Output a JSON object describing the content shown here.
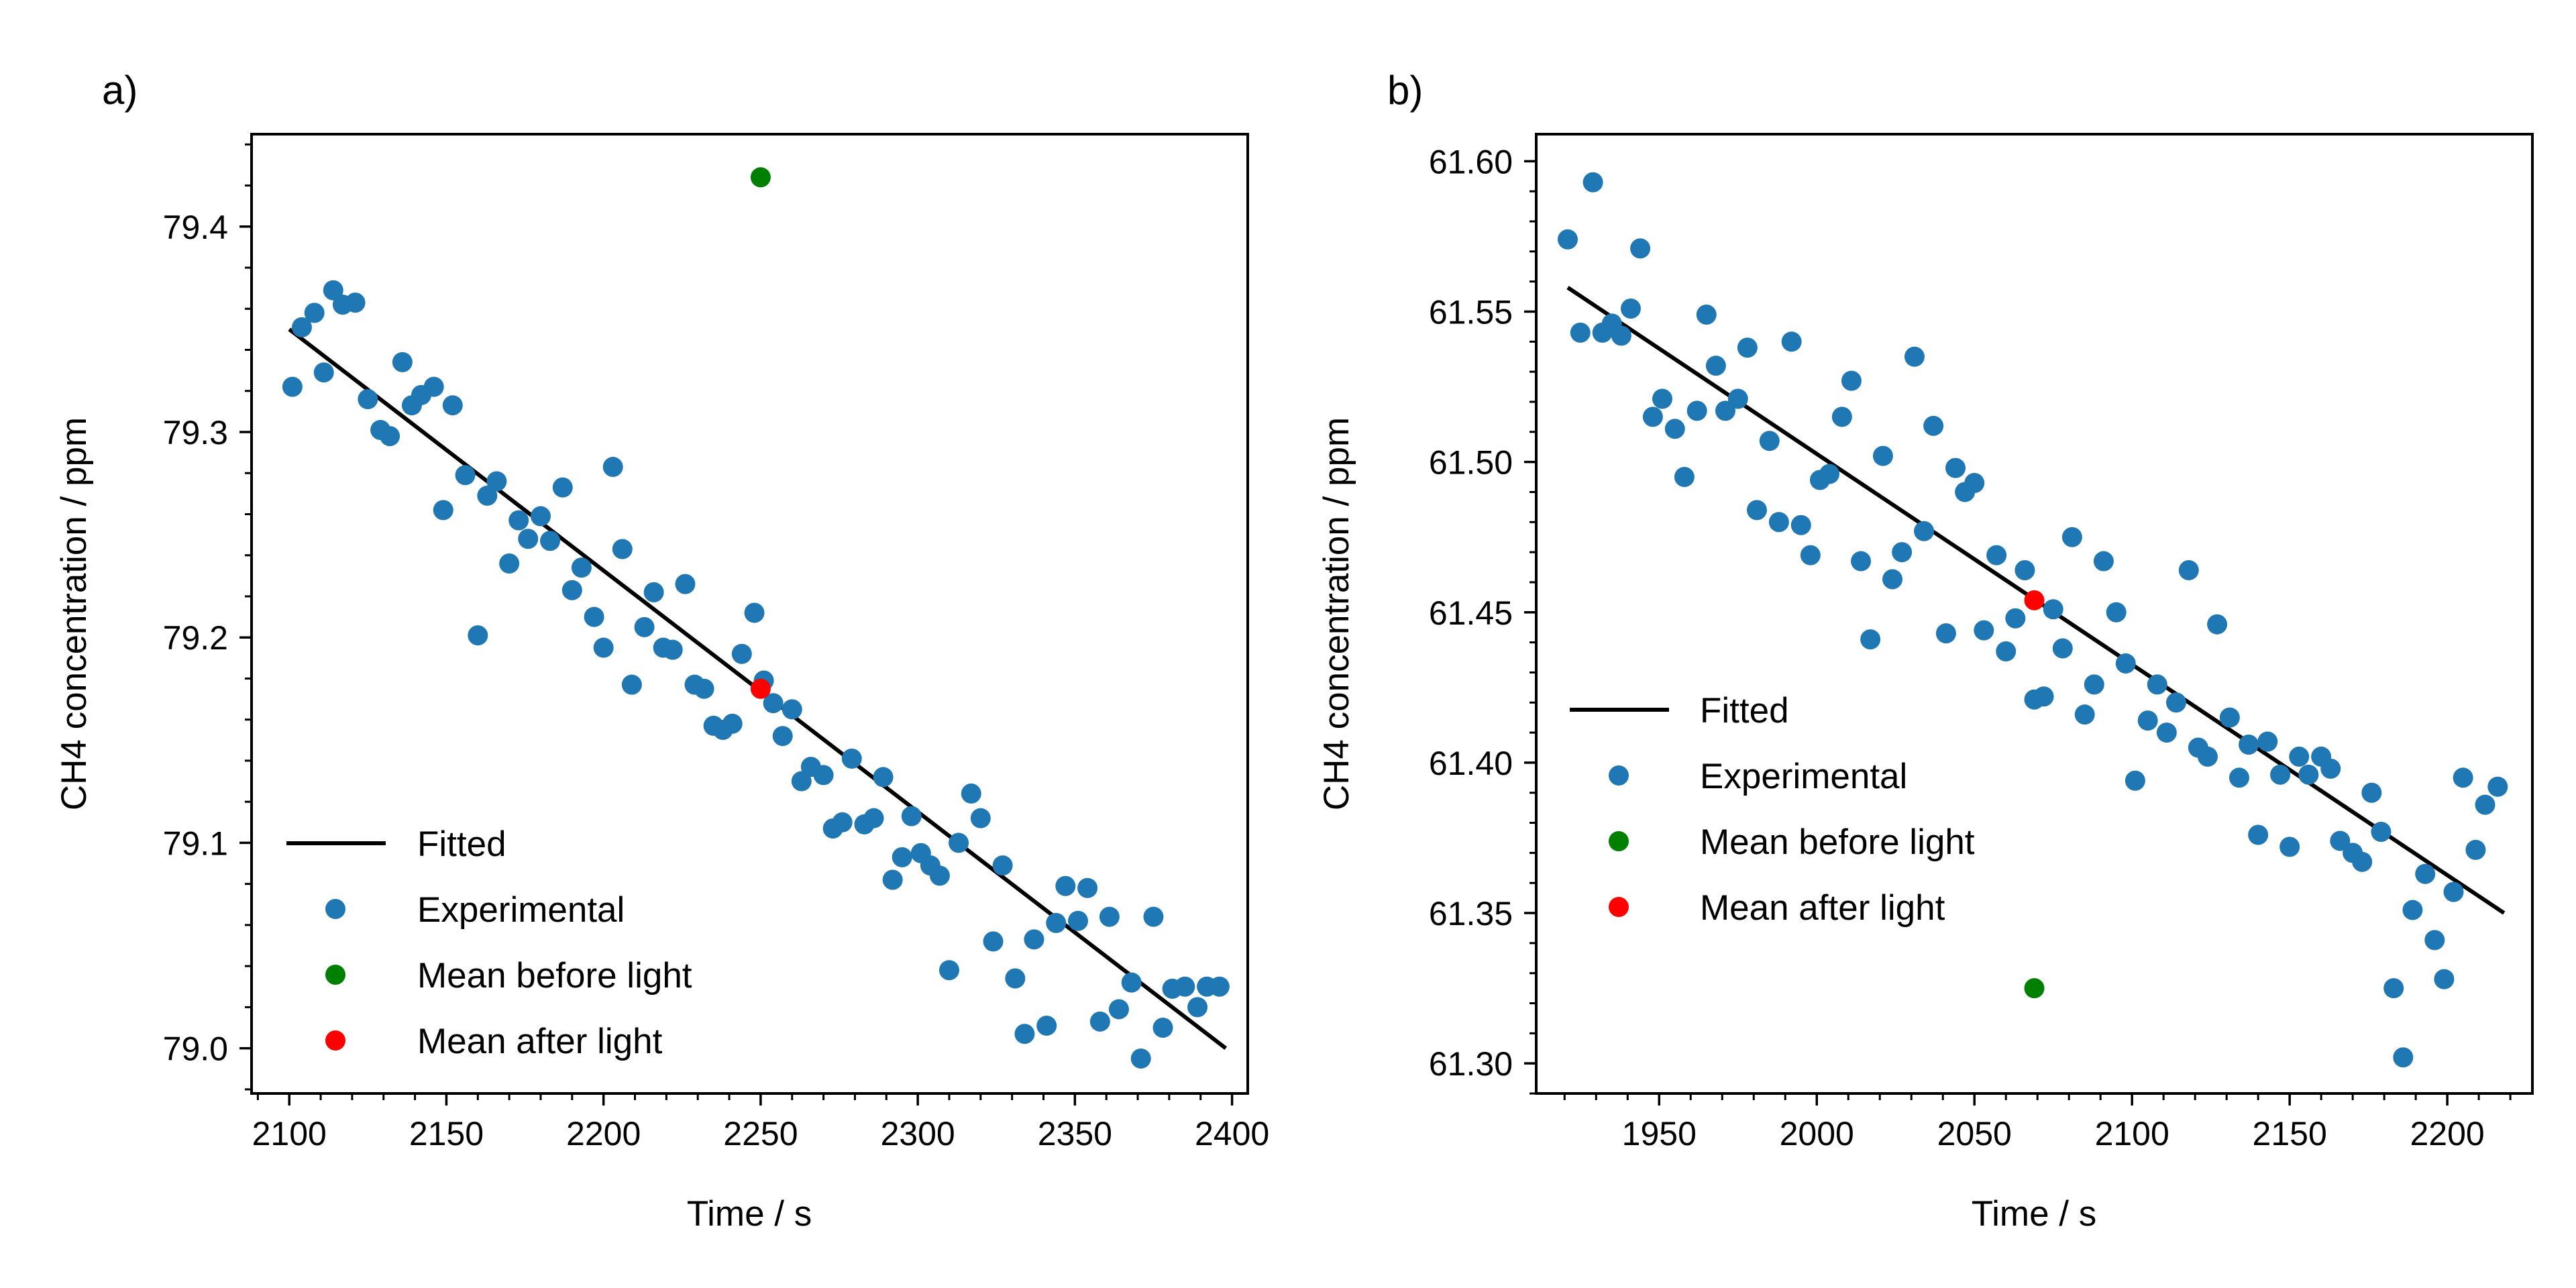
{
  "chart_data": [
    {
      "type": "scatter",
      "panel_label": "a)",
      "xlabel": "Time / s",
      "ylabel": "CH4 concentration / ppm",
      "xlim": [
        2088,
        2405
      ],
      "ylim": [
        78.978,
        79.445
      ],
      "xticks": [
        2100,
        2150,
        2200,
        2250,
        2300,
        2350,
        2400
      ],
      "yticks": [
        79.0,
        79.1,
        79.2,
        79.3,
        79.4
      ],
      "xminor_step": 10,
      "yminor_step": 0.02,
      "ytick_decimals": 1,
      "legend_position": "lower-left",
      "legend": [
        {
          "label": "Fitted",
          "kind": "line",
          "color": "#000000"
        },
        {
          "label": "Experimental",
          "kind": "marker",
          "color": "#1f77b4"
        },
        {
          "label": "Mean before light",
          "kind": "marker",
          "color": "#008000"
        },
        {
          "label": "Mean after light",
          "kind": "marker",
          "color": "#ff0000"
        }
      ],
      "series": [
        {
          "name": "Fitted",
          "kind": "line",
          "color": "#000000",
          "x": [
            2100,
            2398
          ],
          "y": [
            79.35,
            79.0
          ]
        },
        {
          "name": "Experimental",
          "kind": "scatter",
          "color": "#1f77b4",
          "x": [
            2101,
            2104,
            2108,
            2111,
            2114,
            2117,
            2121,
            2125,
            2129,
            2132,
            2136,
            2139,
            2142,
            2146,
            2149,
            2152,
            2156,
            2160,
            2163,
            2166,
            2170,
            2173,
            2176,
            2180,
            2183,
            2187,
            2190,
            2193,
            2197,
            2200,
            2203,
            2206,
            2209,
            2213,
            2216,
            2219,
            2222,
            2226,
            2229,
            2232,
            2235,
            2238,
            2241,
            2244,
            2248,
            2251,
            2254,
            2257,
            2260,
            2263,
            2266,
            2270,
            2273,
            2276,
            2279,
            2283,
            2286,
            2289,
            2292,
            2295,
            2298,
            2301,
            2304,
            2307,
            2310,
            2313,
            2317,
            2320,
            2324,
            2327,
            2331,
            2334,
            2337,
            2341,
            2344,
            2347,
            2351,
            2354,
            2358,
            2361,
            2364,
            2368,
            2371,
            2375,
            2378,
            2381,
            2385,
            2389,
            2392,
            2396
          ],
          "y": [
            79.322,
            79.351,
            79.358,
            79.329,
            79.369,
            79.362,
            79.363,
            79.316,
            79.301,
            79.298,
            79.334,
            79.313,
            79.318,
            79.322,
            79.262,
            79.313,
            79.279,
            79.201,
            79.269,
            79.276,
            79.236,
            79.257,
            79.248,
            79.259,
            79.247,
            79.273,
            79.223,
            79.234,
            79.21,
            79.195,
            79.283,
            79.243,
            79.177,
            79.205,
            79.222,
            79.195,
            79.194,
            79.226,
            79.177,
            79.175,
            79.157,
            79.155,
            79.158,
            79.192,
            79.212,
            79.179,
            79.168,
            79.152,
            79.165,
            79.13,
            79.137,
            79.133,
            79.107,
            79.11,
            79.141,
            79.109,
            79.112,
            79.132,
            79.082,
            79.093,
            79.113,
            79.095,
            79.089,
            79.084,
            79.038,
            79.1,
            79.124,
            79.112,
            79.052,
            79.089,
            79.034,
            79.007,
            79.053,
            79.011,
            79.061,
            79.079,
            79.062,
            79.078,
            79.013,
            79.064,
            79.019,
            79.032,
            78.995,
            79.064,
            79.01,
            79.029,
            79.03,
            79.02,
            79.03,
            79.03
          ]
        },
        {
          "name": "Mean before light",
          "kind": "scatter",
          "color": "#008000",
          "x": [
            2250
          ],
          "y": [
            79.424
          ]
        },
        {
          "name": "Mean after light",
          "kind": "scatter",
          "color": "#ff0000",
          "x": [
            2250
          ],
          "y": [
            79.175
          ]
        }
      ]
    },
    {
      "type": "scatter",
      "panel_label": "b)",
      "xlabel": "Time / s",
      "ylabel": "CH4 concentration / ppm",
      "xlim": [
        1911,
        2227
      ],
      "ylim": [
        61.29,
        61.609
      ],
      "xticks": [
        1950,
        2000,
        2050,
        2100,
        2150,
        2200
      ],
      "yticks": [
        61.3,
        61.35,
        61.4,
        61.45,
        61.5,
        61.55,
        61.6
      ],
      "xminor_step": 10,
      "yminor_step": 0.01,
      "ytick_decimals": 2,
      "legend_position": "center-left",
      "legend": [
        {
          "label": "Fitted",
          "kind": "line",
          "color": "#000000"
        },
        {
          "label": "Experimental",
          "kind": "marker",
          "color": "#1f77b4"
        },
        {
          "label": "Mean before light",
          "kind": "marker",
          "color": "#008000"
        },
        {
          "label": "Mean after light",
          "kind": "marker",
          "color": "#ff0000"
        }
      ],
      "series": [
        {
          "name": "Fitted",
          "kind": "line",
          "color": "#000000",
          "x": [
            1921,
            2218
          ],
          "y": [
            61.558,
            61.35
          ]
        },
        {
          "name": "Experimental",
          "kind": "scatter",
          "color": "#1f77b4",
          "x": [
            1921,
            1925,
            1929,
            1932,
            1935,
            1938,
            1941,
            1944,
            1948,
            1951,
            1955,
            1958,
            1962,
            1965,
            1968,
            1971,
            1975,
            1978,
            1981,
            1985,
            1988,
            1992,
            1995,
            1998,
            2001,
            2004,
            2008,
            2011,
            2014,
            2017,
            2021,
            2024,
            2027,
            2031,
            2034,
            2037,
            2041,
            2044,
            2047,
            2050,
            2053,
            2057,
            2060,
            2063,
            2066,
            2069,
            2072,
            2075,
            2078,
            2081,
            2085,
            2088,
            2091,
            2095,
            2098,
            2101,
            2105,
            2108,
            2111,
            2114,
            2118,
            2121,
            2124,
            2127,
            2131,
            2134,
            2137,
            2140,
            2143,
            2147,
            2150,
            2153,
            2156,
            2160,
            2163,
            2166,
            2170,
            2173,
            2176,
            2179,
            2183,
            2186,
            2189,
            2193,
            2196,
            2199,
            2202,
            2205,
            2209,
            2212,
            2216
          ],
          "y": [
            61.574,
            61.543,
            61.593,
            61.543,
            61.546,
            61.542,
            61.551,
            61.571,
            61.515,
            61.521,
            61.511,
            61.495,
            61.517,
            61.549,
            61.532,
            61.517,
            61.521,
            61.538,
            61.484,
            61.507,
            61.48,
            61.54,
            61.479,
            61.469,
            61.494,
            61.496,
            61.515,
            61.527,
            61.467,
            61.441,
            61.502,
            61.461,
            61.47,
            61.535,
            61.477,
            61.512,
            61.443,
            61.498,
            61.49,
            61.493,
            61.444,
            61.469,
            61.437,
            61.448,
            61.464,
            61.421,
            61.422,
            61.451,
            61.438,
            61.475,
            61.416,
            61.426,
            61.467,
            61.45,
            61.433,
            61.394,
            61.414,
            61.426,
            61.41,
            61.42,
            61.464,
            61.405,
            61.402,
            61.446,
            61.415,
            61.395,
            61.406,
            61.376,
            61.407,
            61.396,
            61.372,
            61.402,
            61.396,
            61.402,
            61.398,
            61.374,
            61.37,
            61.367,
            61.39,
            61.377,
            61.325,
            61.302,
            61.351,
            61.363,
            61.341,
            61.328,
            61.357,
            61.395,
            61.371,
            61.386,
            61.392
          ]
        },
        {
          "name": "Mean before light",
          "kind": "scatter",
          "color": "#008000",
          "x": [
            2069
          ],
          "y": [
            61.325
          ]
        },
        {
          "name": "Mean after light",
          "kind": "scatter",
          "color": "#ff0000",
          "x": [
            2069
          ],
          "y": [
            61.454
          ]
        }
      ]
    }
  ]
}
